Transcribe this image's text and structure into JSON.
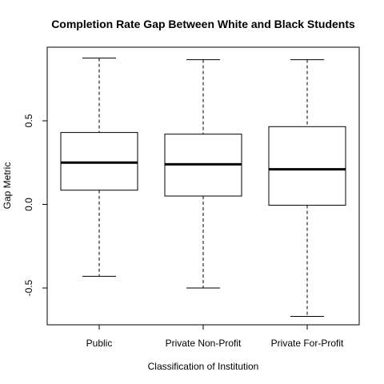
{
  "chart_data": {
    "type": "boxplot",
    "title": "Completion Rate Gap Between White and Black Students",
    "xlabel": "Classification of Institution",
    "ylabel": "Gap Metric",
    "ylim": [
      -0.72,
      0.94
    ],
    "yticks": [
      -0.5,
      0.0,
      0.5
    ],
    "ytick_labels": [
      "-0.5",
      "0.0",
      "0.5"
    ],
    "grid": false,
    "legend": "none",
    "categories": [
      "Public",
      "Private Non-Profit",
      "Private For-Profit"
    ],
    "boxes": [
      {
        "category": "Public",
        "whisker_low": -0.43,
        "q1": 0.085,
        "median": 0.25,
        "q3": 0.43,
        "whisker_high": 0.875
      },
      {
        "category": "Private Non-Profit",
        "whisker_low": -0.5,
        "q1": 0.05,
        "median": 0.24,
        "q3": 0.42,
        "whisker_high": 0.865
      },
      {
        "category": "Private For-Profit",
        "whisker_low": -0.67,
        "q1": -0.005,
        "median": 0.21,
        "q3": 0.465,
        "whisker_high": 0.865
      }
    ]
  }
}
